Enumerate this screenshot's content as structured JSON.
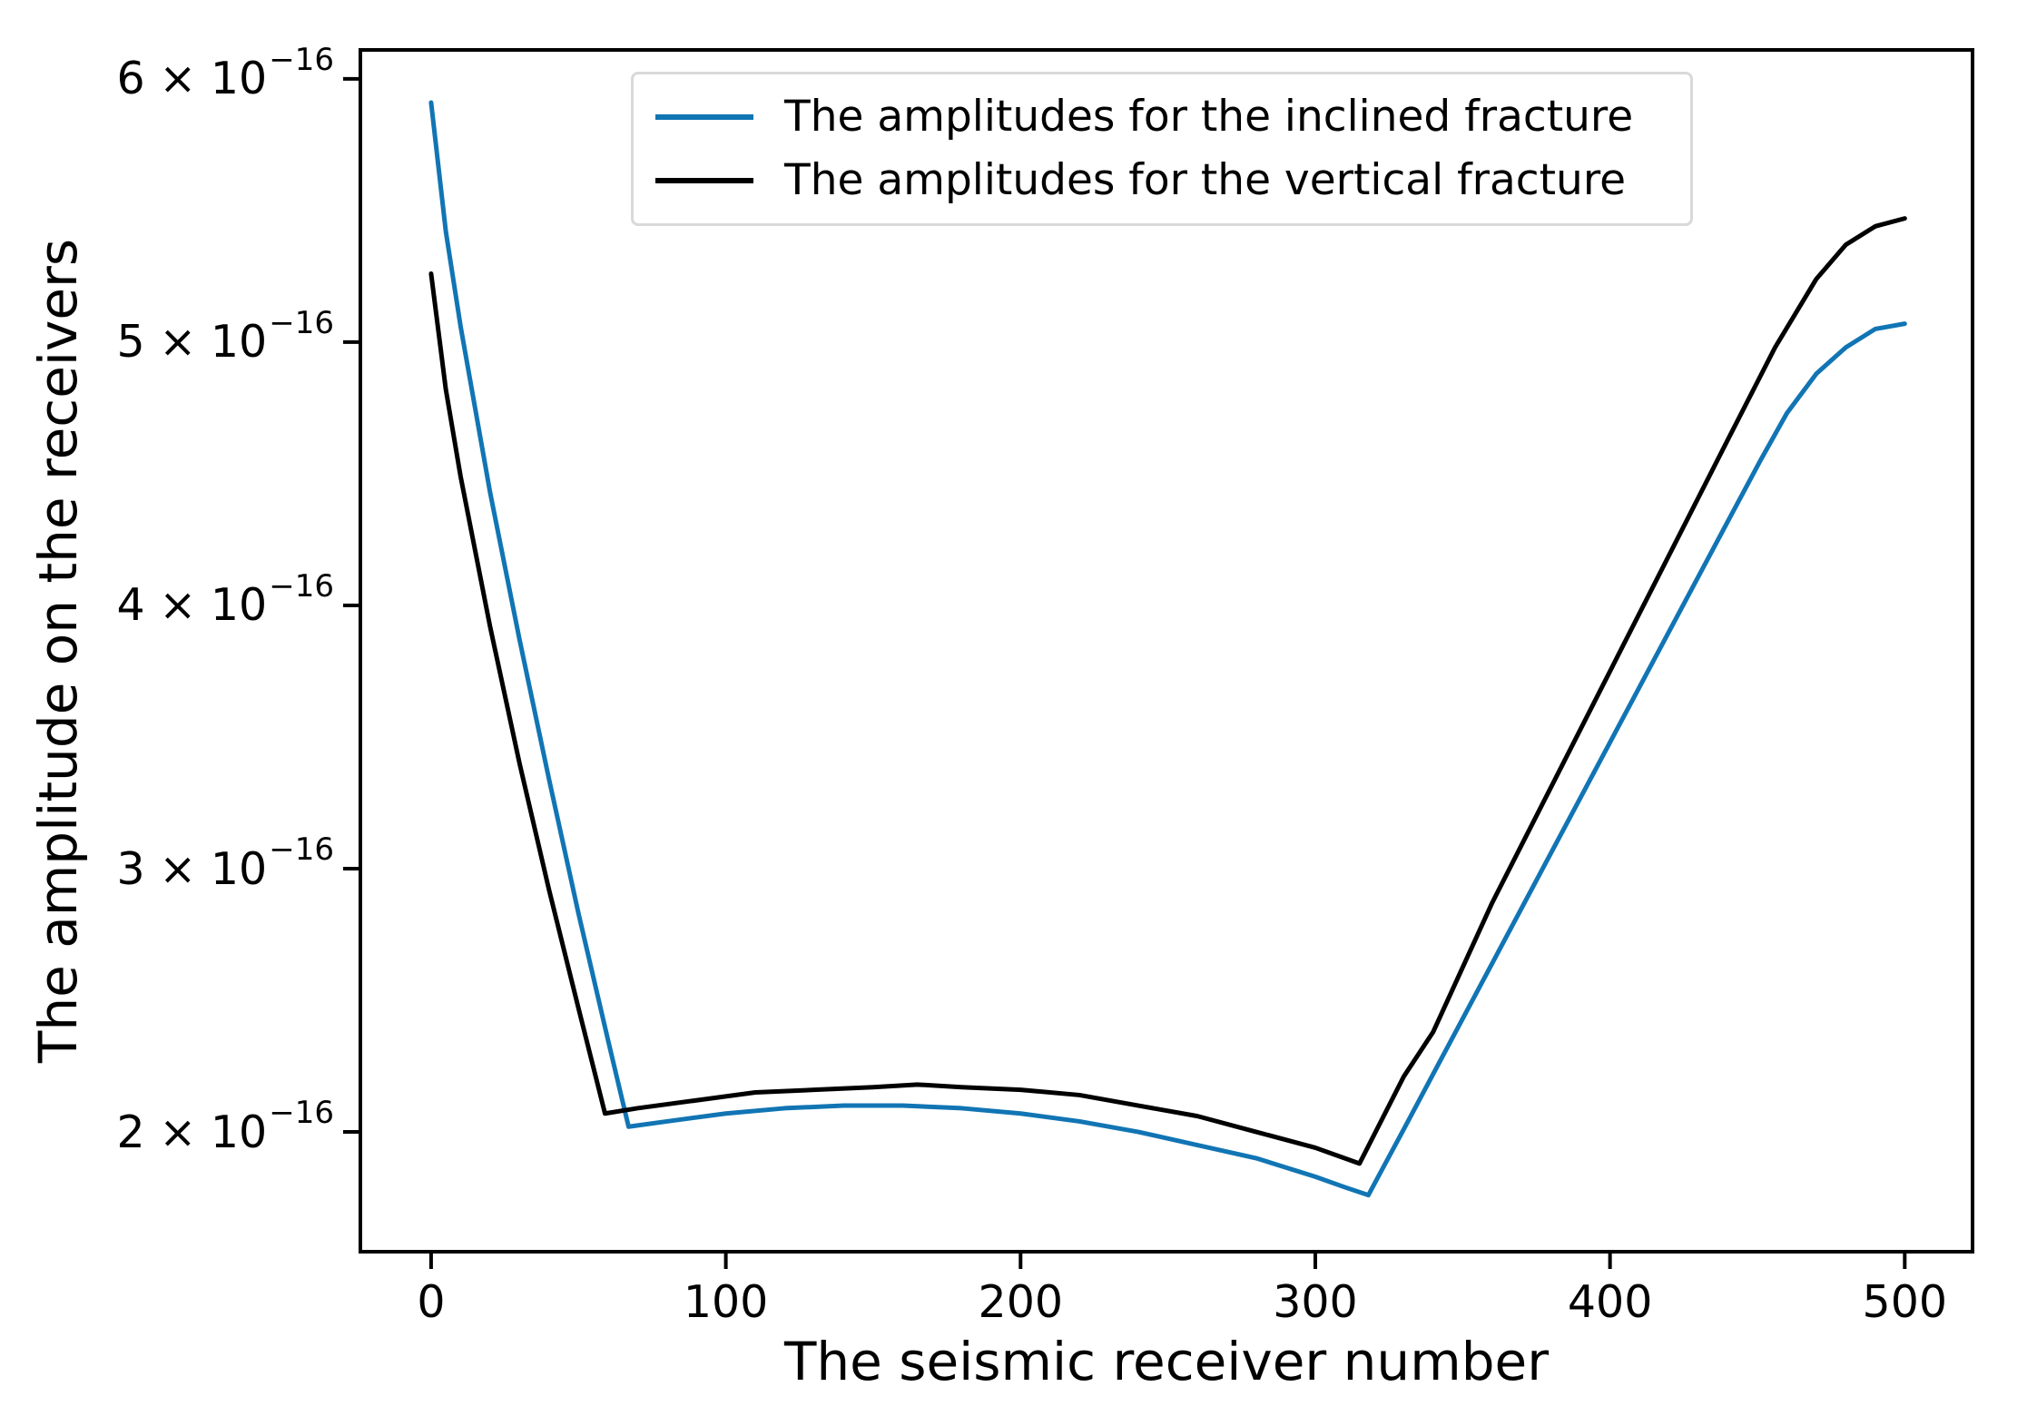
{
  "figure": {
    "background": "#ffffff",
    "text_color": "#000000"
  },
  "chart_data": {
    "type": "line",
    "title": "",
    "xlabel": "The seismic receiver number",
    "ylabel": "The amplitude on the receivers",
    "grid": false,
    "legend_position": "upper center",
    "xlim": [
      -24,
      523
    ],
    "ylim_e16": [
      1.545,
      6.11
    ],
    "y_unit_scale": "1e-16",
    "x_ticks": [
      {
        "value": 0,
        "label": "0"
      },
      {
        "value": 100,
        "label": "100"
      },
      {
        "value": 200,
        "label": "200"
      },
      {
        "value": 300,
        "label": "300"
      },
      {
        "value": 400,
        "label": "400"
      },
      {
        "value": 500,
        "label": "500"
      }
    ],
    "y_ticks": [
      {
        "value_e16": 2,
        "label_main": "2 × 10",
        "label_exp": "−16"
      },
      {
        "value_e16": 3,
        "label_main": "3 × 10",
        "label_exp": "−16"
      },
      {
        "value_e16": 4,
        "label_main": "4 × 10",
        "label_exp": "−16"
      },
      {
        "value_e16": 5,
        "label_main": "5 × 10",
        "label_exp": "−16"
      },
      {
        "value_e16": 6,
        "label_main": "6 × 10",
        "label_exp": "−16"
      }
    ],
    "series": [
      {
        "name": "The amplitudes for the inclined fracture",
        "color": "#1175b4",
        "x": [
          0,
          5,
          10,
          20,
          30,
          40,
          50,
          60,
          67,
          80,
          100,
          120,
          140,
          150,
          160,
          180,
          200,
          220,
          240,
          260,
          280,
          300,
          310,
          318,
          330,
          340,
          360,
          380,
          400,
          420,
          440,
          451,
          460,
          470,
          480,
          490,
          500
        ],
        "y_e16": [
          5.91,
          5.42,
          5.06,
          4.43,
          3.87,
          3.34,
          2.83,
          2.35,
          2.02,
          2.04,
          2.07,
          2.09,
          2.1,
          2.1,
          2.1,
          2.09,
          2.07,
          2.04,
          2.0,
          1.95,
          1.9,
          1.83,
          1.79,
          1.76,
          2.01,
          2.22,
          2.64,
          3.06,
          3.48,
          3.9,
          4.32,
          4.55,
          4.73,
          4.88,
          4.98,
          5.05,
          5.07
        ]
      },
      {
        "name": "The amplitudes for the vertical fracture",
        "color": "#000000",
        "x": [
          0,
          5,
          10,
          20,
          30,
          40,
          50,
          59,
          70,
          90,
          110,
          130,
          150,
          165,
          180,
          200,
          220,
          240,
          260,
          280,
          300,
          315,
          330,
          340,
          360,
          380,
          400,
          420,
          440,
          456,
          470,
          480,
          490,
          500
        ],
        "y_e16": [
          5.26,
          4.82,
          4.49,
          3.92,
          3.4,
          2.92,
          2.47,
          2.07,
          2.09,
          2.12,
          2.15,
          2.16,
          2.17,
          2.18,
          2.17,
          2.16,
          2.14,
          2.1,
          2.06,
          2.0,
          1.94,
          1.88,
          2.21,
          2.38,
          2.87,
          3.31,
          3.75,
          4.19,
          4.63,
          4.98,
          5.24,
          5.37,
          5.44,
          5.47
        ]
      }
    ]
  }
}
